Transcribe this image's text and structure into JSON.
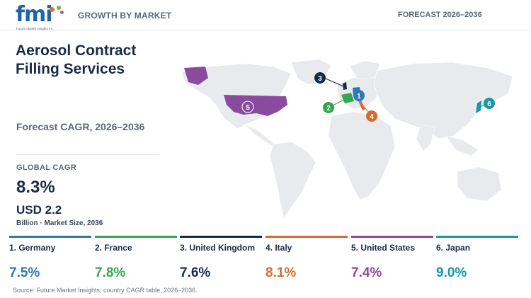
{
  "header": {
    "logo": {
      "name": "fmi",
      "tagline": "Future Market Insights Inc."
    },
    "section_label": "GROWTH BY MARKET",
    "forecast_label": "FORECAST 2026–2036"
  },
  "summary": {
    "title": "Aerosol Contract Filling Services",
    "subtitle": "Forecast CAGR, 2026–2036",
    "global_cagr_label": "GLOBAL CAGR",
    "global_cagr_value": "8.3%",
    "market_size_value": "USD 2.2",
    "market_size_caption": "Billion · Market Size, 2036"
  },
  "map": {
    "markers": [
      {
        "number": "1",
        "country": "Germany",
        "color": "#2f78b6"
      },
      {
        "number": "2",
        "country": "France",
        "color": "#35a650"
      },
      {
        "number": "3",
        "country": "United Kingdom",
        "color": "#142c4a"
      },
      {
        "number": "4",
        "country": "Italy",
        "color": "#d96a2c"
      },
      {
        "number": "5",
        "country": "United States",
        "color": "#8a4a9e"
      },
      {
        "number": "6",
        "country": "Japan",
        "color": "#1798a3"
      }
    ]
  },
  "countries": [
    {
      "label": "1. Germany",
      "cagr": "7.5%",
      "color": "#2f78b6"
    },
    {
      "label": "2. France",
      "cagr": "7.8%",
      "color": "#35a650"
    },
    {
      "label": "3. United Kingdom",
      "cagr": "7.6%",
      "color": "#142c4a"
    },
    {
      "label": "4. Italy",
      "cagr": "8.1%",
      "color": "#d96a2c"
    },
    {
      "label": "5. United States",
      "cagr": "7.4%",
      "color": "#8a4a9e"
    },
    {
      "label": "6. Japan",
      "cagr": "9.0%",
      "color": "#1798a3"
    }
  ],
  "footer": {
    "source": "Source: Future Market Insights; country CAGR table, 2026–2036."
  }
}
